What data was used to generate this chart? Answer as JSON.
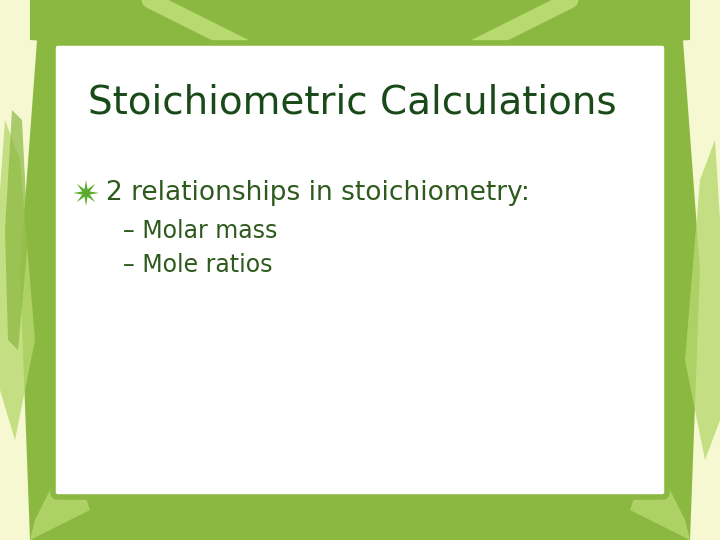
{
  "title": "Stoichiometric Calculations",
  "bullet_main": "2 relationships in stoichiometry:",
  "bullet_sub1": "– Molar mass",
  "bullet_sub2": "– Mole ratios",
  "bg_color": "#f5f8d0",
  "box_color": "#ffffff",
  "border_color": "#8ab840",
  "title_color": "#1a4a1a",
  "bullet_color": "#5aab2e",
  "sub_color": "#2e5a1e",
  "star_color": "#5aab2e",
  "leaf_color1": "#b8d870",
  "leaf_color2": "#8ab840",
  "title_fontsize": 28,
  "bullet_fontsize": 19,
  "sub_fontsize": 17
}
